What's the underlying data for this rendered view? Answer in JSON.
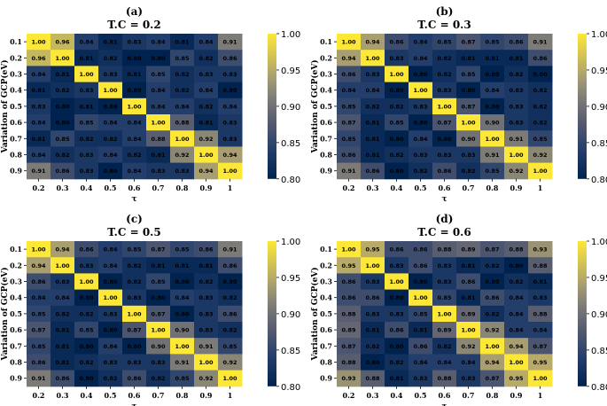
{
  "chart_data": [
    {
      "type": "heatmap",
      "panel_label": "(a)",
      "title": "T.C = 0.2",
      "xlabel": "τ",
      "ylabel": "Variation of GCP(eV)",
      "x_ticks": [
        "0.2",
        "0.3",
        "0.4",
        "0.5",
        "0.6",
        "0.7",
        "0.8",
        "0.9",
        "1"
      ],
      "y_ticks": [
        "0.1",
        "0.2",
        "0.3",
        "0.4",
        "0.5",
        "0.6",
        "0.7",
        "0.8",
        "0.9"
      ],
      "colorbar": {
        "min": 0.8,
        "max": 1.0,
        "ticks": [
          "0.80",
          "0.85",
          "0.90",
          "0.95",
          "1.00"
        ]
      },
      "values": [
        [
          "1.00",
          "0.96",
          "0.84",
          "0.81",
          "0.83",
          "0.84",
          "0.81",
          "0.84",
          "0.91"
        ],
        [
          "0.96",
          "1.00",
          "0.81",
          "0.82",
          "0.80",
          "0.80",
          "0.85",
          "0.82",
          "0.86"
        ],
        [
          "0.84",
          "0.81",
          "1.00",
          "0.83",
          "0.81",
          "0.85",
          "0.82",
          "0.83",
          "0.83"
        ],
        [
          "0.81",
          "0.82",
          "0.83",
          "1.00",
          "0.80",
          "0.84",
          "0.82",
          "0.84",
          "0.80"
        ],
        [
          "0.83",
          "0.80",
          "0.81",
          "0.80",
          "1.00",
          "0.84",
          "0.84",
          "0.82",
          "0.84"
        ],
        [
          "0.84",
          "0.80",
          "0.85",
          "0.84",
          "0.84",
          "1.00",
          "0.88",
          "0.81",
          "0.83"
        ],
        [
          "0.81",
          "0.85",
          "0.82",
          "0.82",
          "0.84",
          "0.88",
          "1.00",
          "0.92",
          "0.83"
        ],
        [
          "0.84",
          "0.82",
          "0.83",
          "0.84",
          "0.82",
          "0.81",
          "0.92",
          "1.00",
          "0.94"
        ],
        [
          "0.91",
          "0.86",
          "0.83",
          "0.80",
          "0.84",
          "0.83",
          "0.83",
          "0.94",
          "1.00"
        ]
      ]
    },
    {
      "type": "heatmap",
      "panel_label": "(b)",
      "title": "T.C = 0.3",
      "xlabel": "τ",
      "ylabel": "Variation of GCP(eV)",
      "x_ticks": [
        "0.2",
        "0.3",
        "0.4",
        "0.5",
        "0.6",
        "0.7",
        "0.8",
        "0.9",
        "1"
      ],
      "y_ticks": [
        "0.1",
        "0.2",
        "0.3",
        "0.4",
        "0.5",
        "0.6",
        "0.7",
        "0.8",
        "0.9"
      ],
      "colorbar": {
        "min": 0.8,
        "max": 1.0,
        "ticks": [
          "0.80",
          "0.85",
          "0.90",
          "0.95",
          "1.00"
        ]
      },
      "values": [
        [
          "1.00",
          "0.94",
          "0.86",
          "0.84",
          "0.85",
          "0.87",
          "0.85",
          "0.86",
          "0.91"
        ],
        [
          "0.94",
          "1.00",
          "0.83",
          "0.84",
          "0.82",
          "0.81",
          "0.81",
          "0.81",
          "0.86"
        ],
        [
          "0.86",
          "0.83",
          "1.00",
          "0.80",
          "0.82",
          "0.85",
          "0.80",
          "0.82",
          "0.80"
        ],
        [
          "0.84",
          "0.84",
          "0.80",
          "1.00",
          "0.83",
          "0.80",
          "0.84",
          "0.83",
          "0.82"
        ],
        [
          "0.85",
          "0.82",
          "0.82",
          "0.83",
          "1.00",
          "0.87",
          "0.80",
          "0.83",
          "0.82"
        ],
        [
          "0.87",
          "0.81",
          "0.85",
          "0.80",
          "0.87",
          "1.00",
          "0.90",
          "0.83",
          "0.82"
        ],
        [
          "0.85",
          "0.81",
          "0.80",
          "0.84",
          "0.80",
          "0.90",
          "1.00",
          "0.91",
          "0.85"
        ],
        [
          "0.86",
          "0.81",
          "0.82",
          "0.83",
          "0.83",
          "0.83",
          "0.91",
          "1.00",
          "0.92"
        ],
        [
          "0.91",
          "0.86",
          "0.80",
          "0.82",
          "0.86",
          "0.82",
          "0.85",
          "0.92",
          "1.00"
        ]
      ]
    },
    {
      "type": "heatmap",
      "panel_label": "(c)",
      "title": "T.C = 0.5",
      "xlabel": "τ",
      "ylabel": "Variation of GCP(eV)",
      "x_ticks": [
        "0.2",
        "0.3",
        "0.4",
        "0.5",
        "0.6",
        "0.7",
        "0.8",
        "0.9",
        "1"
      ],
      "y_ticks": [
        "0.1",
        "0.2",
        "0.3",
        "0.4",
        "0.5",
        "0.6",
        "0.7",
        "0.8",
        "0.9"
      ],
      "colorbar": {
        "min": 0.8,
        "max": 1.0,
        "ticks": [
          "0.80",
          "0.85",
          "0.90",
          "0.95",
          "1.00"
        ]
      },
      "values": [
        [
          "1.00",
          "0.94",
          "0.86",
          "0.84",
          "0.85",
          "0.87",
          "0.85",
          "0.86",
          "0.91"
        ],
        [
          "0.94",
          "1.00",
          "0.83",
          "0.84",
          "0.82",
          "0.81",
          "0.81",
          "0.81",
          "0.86"
        ],
        [
          "0.86",
          "0.83",
          "1.00",
          "0.80",
          "0.82",
          "0.85",
          "0.80",
          "0.82",
          "0.80"
        ],
        [
          "0.84",
          "0.84",
          "0.80",
          "1.00",
          "0.83",
          "0.80",
          "0.84",
          "0.83",
          "0.82"
        ],
        [
          "0.85",
          "0.82",
          "0.82",
          "0.83",
          "1.00",
          "0.87",
          "0.80",
          "0.83",
          "0.86"
        ],
        [
          "0.87",
          "0.81",
          "0.85",
          "0.80",
          "0.87",
          "1.00",
          "0.90",
          "0.83",
          "0.82"
        ],
        [
          "0.85",
          "0.81",
          "0.80",
          "0.84",
          "0.80",
          "0.90",
          "1.00",
          "0.91",
          "0.85"
        ],
        [
          "0.86",
          "0.81",
          "0.82",
          "0.83",
          "0.83",
          "0.83",
          "0.91",
          "1.00",
          "0.92"
        ],
        [
          "0.91",
          "0.86",
          "0.80",
          "0.82",
          "0.86",
          "0.82",
          "0.85",
          "0.92",
          "1.00"
        ]
      ]
    },
    {
      "type": "heatmap",
      "panel_label": "(d)",
      "title": "T.C = 0.6",
      "xlabel": "τ",
      "ylabel": "Variation of GCP(eV)",
      "x_ticks": [
        "0.2",
        "0.3",
        "0.4",
        "0.5",
        "0.6",
        "0.7",
        "0.8",
        "0.9",
        "1"
      ],
      "y_ticks": [
        "0.1",
        "0.2",
        "0.3",
        "0.4",
        "0.5",
        "0.6",
        "0.7",
        "0.8",
        "0.9"
      ],
      "colorbar": {
        "min": 0.8,
        "max": 1.0,
        "ticks": [
          "0.80",
          "0.85",
          "0.90",
          "0.95",
          "1.00"
        ]
      },
      "values": [
        [
          "1.00",
          "0.95",
          "0.86",
          "0.86",
          "0.88",
          "0.89",
          "0.87",
          "0.88",
          "0.93"
        ],
        [
          "0.95",
          "1.00",
          "0.83",
          "0.86",
          "0.83",
          "0.81",
          "0.82",
          "0.80",
          "0.88"
        ],
        [
          "0.86",
          "0.83",
          "1.00",
          "0.80",
          "0.83",
          "0.86",
          "0.80",
          "0.82",
          "0.81"
        ],
        [
          "0.86",
          "0.86",
          "0.80",
          "1.00",
          "0.85",
          "0.81",
          "0.86",
          "0.84",
          "0.83"
        ],
        [
          "0.88",
          "0.83",
          "0.83",
          "0.85",
          "1.00",
          "0.89",
          "0.82",
          "0.84",
          "0.88"
        ],
        [
          "0.89",
          "0.81",
          "0.86",
          "0.81",
          "0.89",
          "1.00",
          "0.92",
          "0.84",
          "0.84"
        ],
        [
          "0.87",
          "0.82",
          "0.80",
          "0.86",
          "0.82",
          "0.92",
          "1.00",
          "0.94",
          "0.87"
        ],
        [
          "0.88",
          "0.80",
          "0.82",
          "0.84",
          "0.84",
          "0.84",
          "0.94",
          "1.00",
          "0.95"
        ],
        [
          "0.93",
          "0.88",
          "0.81",
          "0.83",
          "0.88",
          "0.83",
          "0.87",
          "0.95",
          "1.00"
        ]
      ]
    }
  ]
}
